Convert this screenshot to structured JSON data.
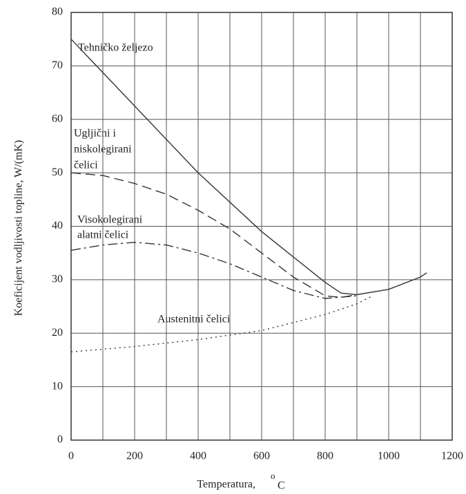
{
  "chart_data": {
    "type": "line",
    "x_label": "Temperatura,",
    "x_unit_sup": "o",
    "x_unit": "C",
    "y_label": "Koeficijent vodljivosti topline,  W/(mK)",
    "xlim": [
      0,
      1200
    ],
    "xticks": [
      0,
      200,
      400,
      600,
      800,
      1000,
      1200
    ],
    "xgrid": [
      100,
      300,
      500,
      700,
      900,
      1100
    ],
    "ylim": [
      0,
      80
    ],
    "yticks": [
      0,
      10,
      20,
      30,
      40,
      50,
      60,
      70,
      80
    ],
    "grid": true,
    "annotations": [
      "Tehničko željezo",
      "Ugljični i",
      "niskolegirani",
      "čelici",
      "Visokolegirani",
      "alatni čelici",
      "Austenitni čelici"
    ],
    "series": [
      {
        "color": "#333",
        "dash": "solid",
        "x": [
          0,
          200,
          400,
          600,
          800,
          850,
          900,
          1000,
          1100,
          1120
        ],
        "values": [
          75,
          62.5,
          50,
          39,
          29.5,
          27.5,
          27.2,
          28.2,
          30.5,
          31.3
        ]
      },
      {
        "color": "#333",
        "dash": "dashed",
        "x": [
          0,
          100,
          200,
          300,
          400,
          500,
          600,
          700,
          800,
          850,
          900
        ],
        "values": [
          50,
          49.5,
          48,
          46,
          43,
          39.5,
          35,
          30.5,
          27,
          26.7,
          27.2
        ]
      },
      {
        "color": "#333",
        "dash": "dashdot",
        "x": [
          0,
          100,
          200,
          300,
          400,
          500,
          600,
          700,
          800,
          900
        ],
        "values": [
          35.5,
          36.5,
          37,
          36.5,
          35,
          33,
          30.5,
          28,
          26.5,
          27
        ]
      },
      {
        "color": "#333",
        "dash": "dotted",
        "x": [
          0,
          200,
          400,
          600,
          800,
          900,
          950
        ],
        "values": [
          16.5,
          17.5,
          18.8,
          20.5,
          23.5,
          25.5,
          27
        ]
      }
    ]
  }
}
